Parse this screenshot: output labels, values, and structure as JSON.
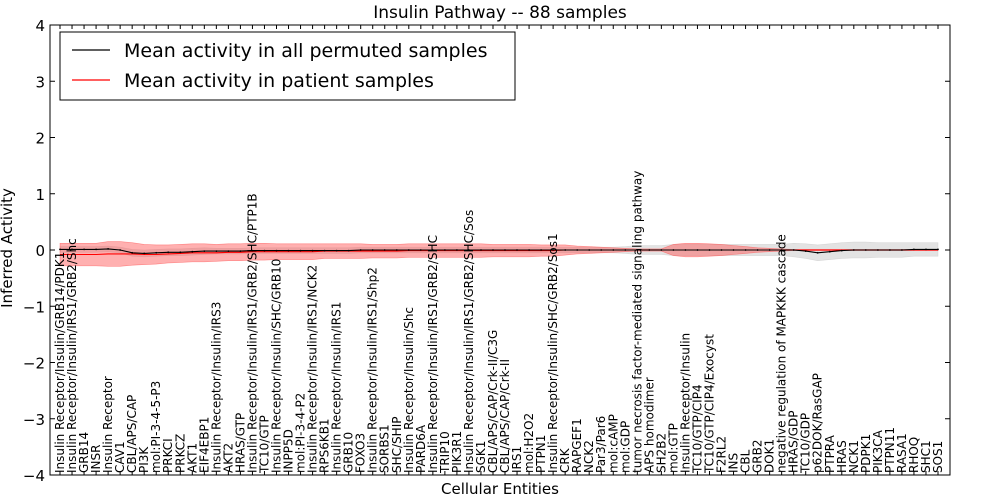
{
  "chart_data": {
    "type": "line",
    "title": "Insulin Pathway -- 88 samples",
    "xlabel": "Cellular Entities",
    "ylabel": "Inferred Activity",
    "ylim": [
      -4,
      4
    ],
    "yticks": [
      4,
      3,
      2,
      1,
      0,
      -1,
      -2,
      -3,
      -4
    ],
    "ytick_labels": [
      "4",
      "3",
      "2",
      "1",
      "0",
      "−1",
      "−2",
      "−3",
      "−4"
    ],
    "legend": {
      "placement": "top-left",
      "entries": [
        {
          "label": "Mean activity in all permuted samples",
          "color": "#000000"
        },
        {
          "label": "Mean activity in patient samples",
          "color": "#ff0000"
        }
      ]
    },
    "categories": [
      "Insulin Receptor/Insulin/GRB14/PDK1",
      "Insulin Receptor/Insulin/IRS1/GRB2/Shc",
      "GRB14",
      "INSR",
      "Insulin Receptor",
      "CAV1",
      "CBL/APS/CAP",
      "PI3K",
      "mol:PI-3-4-5-P3",
      "PRKCI",
      "PRKCZ",
      "AKT1",
      "EIF4EBP1",
      "Insulin Receptor/Insulin/IRS3",
      "AKT2",
      "HRAS/GTP",
      "Insulin Receptor/Insulin/IRS1/GRB2/SHC/PTP1B",
      "TC10/GTP",
      "Insulin Receptor/Insulin/SHC/GRB10",
      "INPP5D",
      "mol:PI-3-4-P2",
      "Insulin Receptor/Insulin/IRS1/NCK2",
      "RPS6KB1",
      "Insulin Receptor/Insulin/IRS1",
      "GRB10",
      "FOXO3",
      "Insulin Receptor/Insulin/IRS1/Shp2",
      "SORBS1",
      "SHC/SHIP",
      "Insulin Receptor/Insulin/Shc",
      "PARD6A",
      "Insulin Receptor/Insulin/IRS1/GRB2/SHC",
      "TRIP10",
      "PIK3R1",
      "Insulin Receptor/Insulin/IRS1/GRB2/SHC/Sos",
      "SGK1",
      "CBL/APS/CAP/Crk-II/C3G",
      "CBL/APS/CAP/Crk-II",
      "IRS1",
      "mol:H2O2",
      "PTPN1",
      "Insulin Receptor/Insulin/SHC/GRB2/Sos1",
      "CRK",
      "RAPGEF1",
      "NCK2",
      "Par3/Par6",
      "mol:cAMP",
      "mol:GDP",
      "tumor necrosis factor-mediated signaling pathway",
      "APS homodimer",
      "SH2B2",
      "mol:GTP",
      "Insulin Receptor/Insulin",
      "TC10/GTP/CIP4",
      "TC10/GTP/CIP4/Exocyst",
      "F2RL2",
      "INS",
      "CBL",
      "GRB2",
      "DOK1",
      "negative regulation of MAPKKK cascade",
      "HRAS/GDP",
      "TC10/GDP",
      "p62DOK/RasGAP",
      "PTPRA",
      "HRAS",
      "NCK1",
      "PDPK1",
      "PIK3CA",
      "PTPN11",
      "RASA1",
      "RHOQ",
      "SHC1",
      "SOS1"
    ],
    "series": [
      {
        "name": "Mean activity in all permuted samples",
        "color": "#000000",
        "values": [
          0.01,
          0.01,
          0.01,
          0.01,
          0.02,
          0.0,
          -0.05,
          -0.06,
          -0.05,
          -0.04,
          -0.04,
          -0.03,
          -0.02,
          -0.02,
          -0.02,
          -0.02,
          -0.01,
          -0.01,
          -0.01,
          -0.01,
          -0.01,
          -0.01,
          -0.01,
          -0.01,
          -0.01,
          0.0,
          0.0,
          0.0,
          0.0,
          0.0,
          0.0,
          0.0,
          0.0,
          0.0,
          0.0,
          0.0,
          0.0,
          0.0,
          0.0,
          0.0,
          0.0,
          0.0,
          0.0,
          0.0,
          0.0,
          0.0,
          0.0,
          0.0,
          0.0,
          0.0,
          0.0,
          0.0,
          0.0,
          0.0,
          0.0,
          0.0,
          0.0,
          0.0,
          0.0,
          0.0,
          0.0,
          0.0,
          -0.02,
          -0.05,
          -0.03,
          -0.01,
          0.0,
          0.0,
          0.0,
          0.0,
          0.0,
          0.01,
          0.01,
          0.01
        ],
        "band": [
          0.05,
          0.05,
          0.05,
          0.05,
          0.05,
          0.05,
          0.06,
          0.06,
          0.06,
          0.06,
          0.06,
          0.06,
          0.06,
          0.05,
          0.05,
          0.05,
          0.05,
          0.05,
          0.05,
          0.05,
          0.05,
          0.05,
          0.05,
          0.05,
          0.05,
          0.05,
          0.05,
          0.05,
          0.05,
          0.05,
          0.05,
          0.05,
          0.05,
          0.05,
          0.05,
          0.05,
          0.05,
          0.05,
          0.05,
          0.05,
          0.05,
          0.05,
          0.05,
          0.05,
          0.05,
          0.05,
          0.05,
          0.06,
          0.08,
          0.08,
          0.08,
          0.1,
          0.1,
          0.1,
          0.1,
          0.1,
          0.1,
          0.1,
          0.1,
          0.1,
          0.1,
          0.12,
          0.13,
          0.14,
          0.14,
          0.14,
          0.14,
          0.14,
          0.13,
          0.13,
          0.13,
          0.12,
          0.12,
          0.12
        ]
      },
      {
        "name": "Mean activity in patient samples",
        "color": "#ff0000",
        "values": [
          -0.08,
          -0.08,
          -0.08,
          -0.08,
          -0.07,
          -0.07,
          -0.07,
          -0.08,
          -0.08,
          -0.07,
          -0.06,
          -0.05,
          -0.05,
          -0.05,
          -0.04,
          -0.04,
          -0.03,
          -0.03,
          -0.03,
          -0.03,
          -0.03,
          -0.03,
          -0.02,
          -0.02,
          -0.02,
          -0.02,
          -0.02,
          -0.02,
          -0.02,
          -0.01,
          -0.01,
          -0.01,
          -0.01,
          -0.01,
          -0.01,
          -0.01,
          -0.01,
          -0.01,
          -0.01,
          -0.01,
          -0.01,
          -0.01,
          0.0,
          0.0,
          0.0,
          0.0,
          0.0,
          0.0,
          0.0,
          0.0,
          0.0,
          0.0,
          0.0,
          0.0,
          0.0,
          0.0,
          0.0,
          0.0,
          0.0,
          0.0,
          0.0,
          0.0,
          0.0,
          0.0,
          0.0,
          0.0,
          0.0,
          0.0,
          0.0,
          0.0,
          0.0,
          0.0,
          0.0,
          0.0
        ],
        "band": [
          0.2,
          0.2,
          0.2,
          0.2,
          0.22,
          0.22,
          0.2,
          0.18,
          0.17,
          0.16,
          0.16,
          0.16,
          0.16,
          0.15,
          0.15,
          0.15,
          0.15,
          0.15,
          0.14,
          0.14,
          0.14,
          0.14,
          0.13,
          0.13,
          0.13,
          0.13,
          0.12,
          0.12,
          0.12,
          0.12,
          0.12,
          0.12,
          0.12,
          0.12,
          0.12,
          0.12,
          0.11,
          0.11,
          0.11,
          0.11,
          0.1,
          0.1,
          0.09,
          0.07,
          0.06,
          0.05,
          0.04,
          0.03,
          0.02,
          0.02,
          0.02,
          0.1,
          0.12,
          0.12,
          0.11,
          0.1,
          0.08,
          0.06,
          0.04,
          0.03,
          0.02,
          0.01,
          0.01,
          0.01,
          0.01,
          0.01,
          0.01,
          0.01,
          0.01,
          0.01,
          0.01,
          0.01,
          0.01,
          0.01
        ]
      }
    ]
  }
}
